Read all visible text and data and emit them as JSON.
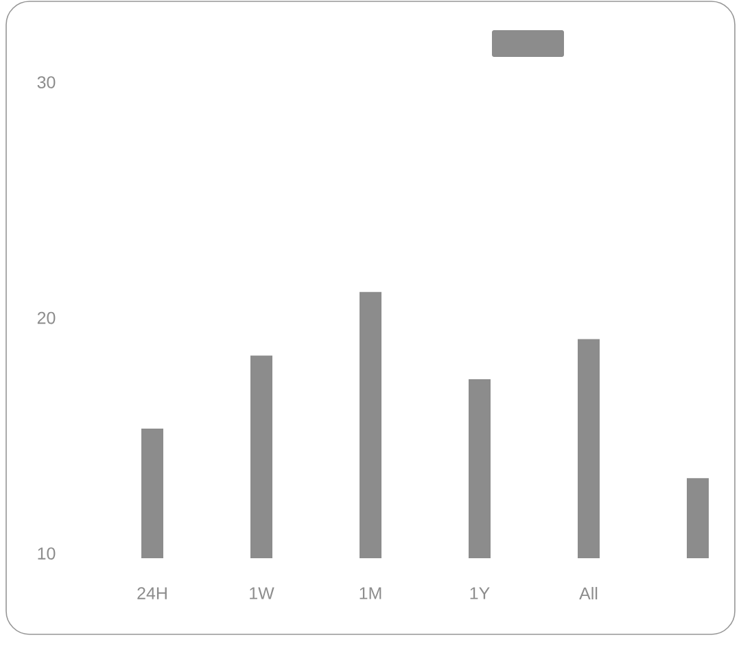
{
  "chart_data": {
    "type": "bar",
    "categories": [
      "24H",
      "1W",
      "1M",
      "1Y",
      "All",
      null
    ],
    "values": [
      15.3,
      18.4,
      21.1,
      17.4,
      19.1,
      13.2
    ],
    "color": "#8c8c8c",
    "ylim": [
      9.8,
      30
    ],
    "yticks": [
      10,
      20,
      30
    ]
  }
}
